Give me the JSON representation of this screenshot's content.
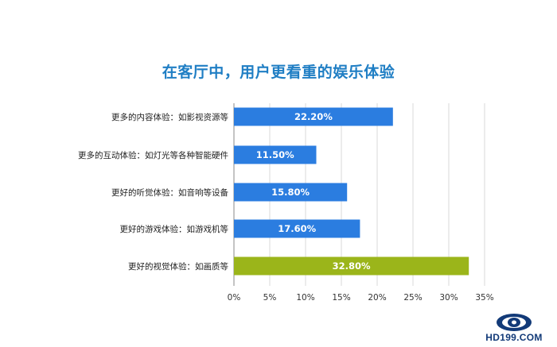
{
  "chart_data": {
    "type": "bar",
    "orientation": "horizontal",
    "title": "在客厅中，用户更看重的娱乐体验",
    "categories": [
      "更多的内容体验：如影视资源等",
      "更多的互动体验：如灯光等各种智能硬件",
      "更好的听觉体验：如音响等设备",
      "更好的游戏体验：如游戏机等",
      "更好的视觉体验：如画质等"
    ],
    "values": [
      22.2,
      11.5,
      15.8,
      17.6,
      32.8
    ],
    "value_labels": [
      "22.20%",
      "11.50%",
      "15.80%",
      "17.60%",
      "32.80%"
    ],
    "bar_colors": [
      "#2b7de0",
      "#2b7de0",
      "#2b7de0",
      "#2b7de0",
      "#9bb51a"
    ],
    "xlim": [
      0,
      35
    ],
    "x_ticks": [
      0,
      5,
      10,
      15,
      20,
      25,
      30,
      35
    ],
    "x_tick_labels": [
      "0%",
      "5%",
      "10%",
      "15%",
      "20%",
      "25%",
      "30%",
      "35%"
    ],
    "grid": true,
    "legend": "none"
  },
  "watermark": {
    "text": "HD199.COM"
  },
  "colors": {
    "title": "#1f7ec4",
    "grid": "#d9d9d9",
    "axis": "#888888",
    "value_label": "#ffffff"
  }
}
